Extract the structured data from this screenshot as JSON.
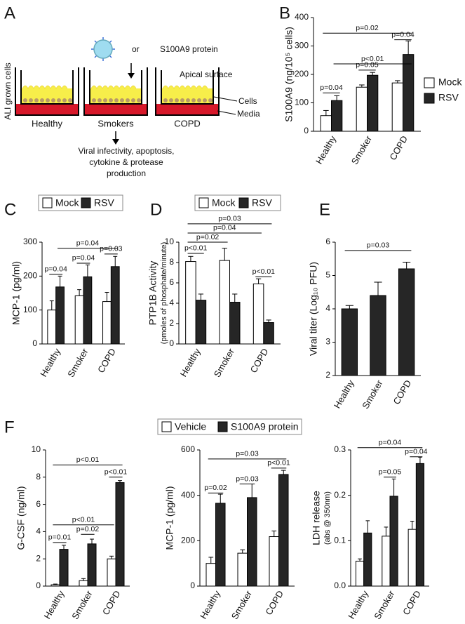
{
  "diagram": {
    "panel_label": "A",
    "side_label": "ALI grown cells",
    "or": "or",
    "protein": "S100A9 protein",
    "apical": "Apical surface",
    "cells": "Cells",
    "media": "Media",
    "wells": [
      "Healthy",
      "Smokers",
      "COPD"
    ],
    "outcome": [
      "Viral infectivity, apoptosis,",
      "cytokine & protease",
      "production"
    ]
  },
  "chart_data": [
    {
      "panel_label": "B",
      "type": "bar",
      "y_label": "S100A9 (ng/10⁵ cells)",
      "categories": [
        "Healthy",
        "Smoker",
        "COPD"
      ],
      "series": [
        {
          "name": "Mock",
          "color": "#ffffff",
          "values": [
            55,
            155,
            170
          ],
          "errors": [
            18,
            8,
            8
          ]
        },
        {
          "name": "RSV",
          "color": "#262626",
          "values": [
            108,
            197,
            270
          ],
          "errors": [
            17,
            10,
            48
          ]
        }
      ],
      "ylim": [
        0,
        400
      ],
      "yticks": [
        0,
        100,
        200,
        300,
        400
      ],
      "legend": "right",
      "annotations": [
        "p=0.04",
        "p=0.05",
        "p=0.04",
        "p<0.01",
        "p=0.02"
      ]
    },
    {
      "panel_label": "C",
      "type": "bar",
      "y_label": "MCP-1 (pg/ml)",
      "categories": [
        "Healthy",
        "Smoker",
        "COPD"
      ],
      "series": [
        {
          "name": "Mock",
          "color": "#ffffff",
          "values": [
            100,
            142,
            125
          ],
          "errors": [
            27,
            18,
            27
          ]
        },
        {
          "name": "RSV",
          "color": "#262626",
          "values": [
            168,
            198,
            228
          ],
          "errors": [
            32,
            35,
            30
          ]
        }
      ],
      "ylim": [
        0,
        300
      ],
      "yticks": [
        0,
        100,
        200,
        300
      ],
      "legend": "top",
      "annotations": [
        "p=0.04",
        "p=0.04",
        "p=0.03",
        "p=0.04"
      ]
    },
    {
      "panel_label": "D",
      "type": "bar",
      "y_label": "PTP1B Activity",
      "y_sublabel": "(pmoles of phosphate/minute)",
      "categories": [
        "Healthy",
        "Smoker",
        "COPD"
      ],
      "series": [
        {
          "name": "Mock",
          "color": "#ffffff",
          "values": [
            8.1,
            8.2,
            5.9
          ],
          "errors": [
            0.5,
            1.2,
            0.5
          ]
        },
        {
          "name": "RSV",
          "color": "#262626",
          "values": [
            4.3,
            4.1,
            2.1
          ],
          "errors": [
            0.6,
            0.8,
            0.25
          ]
        }
      ],
      "ylim": [
        0,
        10
      ],
      "yticks": [
        0,
        2,
        4,
        6,
        8,
        10
      ],
      "legend": "top",
      "annotations": [
        "p<0.01",
        "p<0.01",
        "p=0.02",
        "p=0.04",
        "p=0.03"
      ]
    },
    {
      "panel_label": "E",
      "type": "bar",
      "y_label": "Viral titer (Log₁₀ PFU)",
      "categories": [
        "Healthy",
        "Smoker",
        "COPD"
      ],
      "values": [
        4.0,
        4.4,
        5.2
      ],
      "errors": [
        0.1,
        0.4,
        0.2
      ],
      "color": "#262626",
      "ylim": [
        2,
        6
      ],
      "yticks": [
        2,
        3,
        4,
        5,
        6
      ],
      "annotations": [
        "p=0.03"
      ]
    },
    {
      "panel_label": "F",
      "type": "bar",
      "y_label": "G-CSF (ng/ml)",
      "categories": [
        "Healthy",
        "Smoker",
        "COPD"
      ],
      "series": [
        {
          "name": "Vehicle",
          "color": "#ffffff",
          "values": [
            0.1,
            0.4,
            2.0
          ],
          "errors": [
            0.05,
            0.15,
            0.2
          ]
        },
        {
          "name": "S100A9 protein",
          "color": "#262626",
          "values": [
            2.7,
            3.1,
            7.6
          ],
          "errors": [
            0.3,
            0.35,
            0.15
          ]
        }
      ],
      "ylim": [
        0,
        10
      ],
      "yticks": [
        0,
        2,
        4,
        6,
        8,
        10
      ],
      "legend": "top",
      "annotations": [
        "p=0.01",
        "p=0.02",
        "p<0.01",
        "p<0.01",
        "p<0.01"
      ]
    },
    {
      "type": "bar",
      "y_label": "MCP-1 (pg/ml)",
      "categories": [
        "Healthy",
        "Smoker",
        "COPD"
      ],
      "series": [
        {
          "color": "#ffffff",
          "values": [
            100,
            145,
            218
          ],
          "errors": [
            27,
            15,
            25
          ]
        },
        {
          "color": "#262626",
          "values": [
            365,
            390,
            492
          ],
          "errors": [
            40,
            60,
            18
          ]
        }
      ],
      "ylim": [
        0,
        600
      ],
      "yticks": [
        0,
        200,
        400,
        600
      ],
      "annotations": [
        "p=0.02",
        "p=0.03",
        "p<0.01",
        "p=0.03"
      ]
    },
    {
      "type": "bar",
      "y_label": "LDH release",
      "y_sublabel": "(abs @ 350nm)",
      "categories": [
        "Healthy",
        "Smoker",
        "COPD"
      ],
      "series": [
        {
          "color": "#ffffff",
          "values": [
            0.055,
            0.11,
            0.125
          ],
          "errors": [
            0.005,
            0.02,
            0.018
          ]
        },
        {
          "color": "#262626",
          "values": [
            0.117,
            0.198,
            0.27
          ],
          "errors": [
            0.027,
            0.038,
            0.014
          ]
        }
      ],
      "ylim": [
        0,
        0.3
      ],
      "yticks": [
        {
          "value": 0,
          "label": "0.0"
        },
        0.1,
        0.2,
        0.3
      ],
      "annotations": [
        "p=0.05",
        "p=0.04",
        "p=0.04"
      ]
    }
  ]
}
